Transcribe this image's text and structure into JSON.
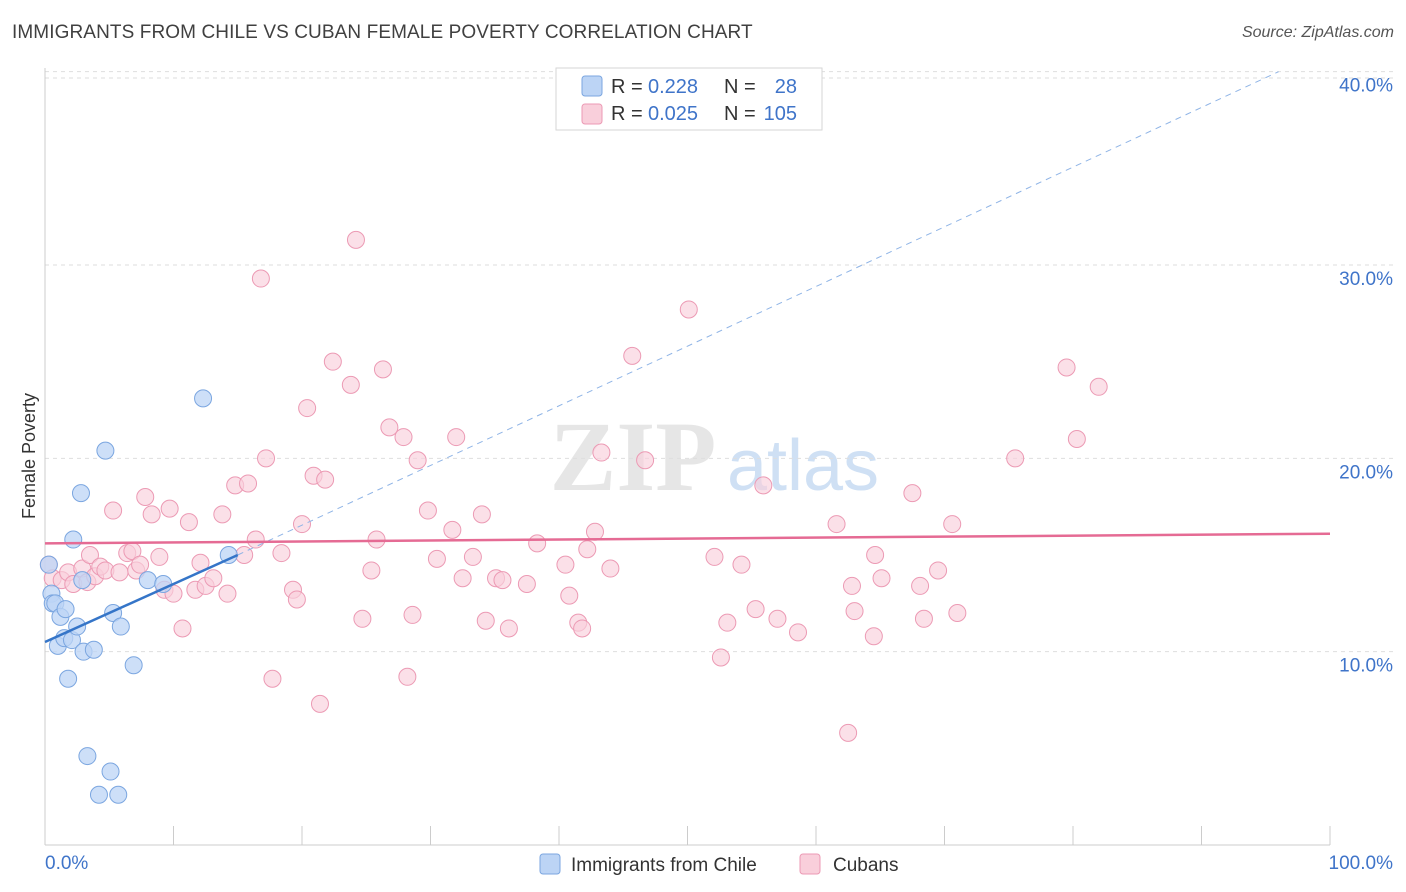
{
  "header": {
    "title": "IMMIGRANTS FROM CHILE VS CUBAN FEMALE POVERTY CORRELATION CHART",
    "source": "Source: ZipAtlas.com"
  },
  "watermark": {
    "zip": "ZIP",
    "atlas": "atlas"
  },
  "legend": {
    "r_label": "R =",
    "n_label": "N =",
    "rows": [
      {
        "r": "0.228",
        "n": "28",
        "color": "#a9c8f2"
      },
      {
        "r": "0.025",
        "n": "105",
        "color": "#f6bccd"
      }
    ]
  },
  "colors": {
    "chile_fill": "#bcd4f5",
    "chile_stroke": "#7ba6e0",
    "chile_line": "#3575c8",
    "cuba_fill": "#f9cfdb",
    "cuba_stroke": "#ec9ab4",
    "cuba_line": "#e56b94",
    "grid": "#dedede",
    "axis_label": "#3f74c9"
  },
  "chart_data": {
    "type": "scatter",
    "title": "IMMIGRANTS FROM CHILE VS CUBAN FEMALE POVERTY CORRELATION CHART",
    "xlabel": "",
    "ylabel": "Female Poverty",
    "xlim": [
      0,
      100
    ],
    "ylim": [
      0,
      40.5
    ],
    "x_tick_labels": [
      "0.0%",
      "100.0%"
    ],
    "y_ticks": [
      10,
      20,
      30,
      40
    ],
    "y_tick_labels": [
      "10.0%",
      "20.0%",
      "30.0%",
      "40.0%"
    ],
    "grid": true,
    "legend_position": "bottom",
    "series": [
      {
        "name": "Immigrants from Chile",
        "R": 0.228,
        "N": 28,
        "trend": {
          "x0": 0,
          "y0": 10.5,
          "x1": 15,
          "y1": 15.0,
          "dash_to_x": 96,
          "dash_to_y": 40.0
        },
        "points": [
          {
            "x": 0.3,
            "y": 14.5
          },
          {
            "x": 0.5,
            "y": 13.0
          },
          {
            "x": 0.6,
            "y": 12.5
          },
          {
            "x": 0.8,
            "y": 12.5
          },
          {
            "x": 1.0,
            "y": 10.3
          },
          {
            "x": 1.2,
            "y": 11.8
          },
          {
            "x": 1.5,
            "y": 10.7
          },
          {
            "x": 1.6,
            "y": 12.2
          },
          {
            "x": 1.8,
            "y": 8.6
          },
          {
            "x": 2.1,
            "y": 10.6
          },
          {
            "x": 2.2,
            "y": 15.8
          },
          {
            "x": 2.5,
            "y": 11.3
          },
          {
            "x": 2.8,
            "y": 18.2
          },
          {
            "x": 2.9,
            "y": 13.7
          },
          {
            "x": 3.0,
            "y": 10.0
          },
          {
            "x": 3.3,
            "y": 4.6
          },
          {
            "x": 3.8,
            "y": 10.1
          },
          {
            "x": 4.2,
            "y": 2.6
          },
          {
            "x": 4.7,
            "y": 20.4
          },
          {
            "x": 5.1,
            "y": 3.8
          },
          {
            "x": 5.3,
            "y": 12.0
          },
          {
            "x": 5.7,
            "y": 2.6
          },
          {
            "x": 5.9,
            "y": 11.3
          },
          {
            "x": 6.9,
            "y": 9.3
          },
          {
            "x": 8.0,
            "y": 13.7
          },
          {
            "x": 9.2,
            "y": 13.5
          },
          {
            "x": 12.3,
            "y": 23.1
          },
          {
            "x": 14.3,
            "y": 15.0
          }
        ]
      },
      {
        "name": "Cubans",
        "R": 0.025,
        "N": 105,
        "trend": {
          "x0": 0,
          "y0": 15.6,
          "x1": 100,
          "y1": 16.1
        },
        "points": [
          {
            "x": 0.3,
            "y": 14.5
          },
          {
            "x": 0.6,
            "y": 13.8
          },
          {
            "x": 1.3,
            "y": 13.7
          },
          {
            "x": 1.8,
            "y": 14.1
          },
          {
            "x": 2.2,
            "y": 13.5
          },
          {
            "x": 2.9,
            "y": 14.3
          },
          {
            "x": 3.3,
            "y": 13.6
          },
          {
            "x": 3.5,
            "y": 15.0
          },
          {
            "x": 3.9,
            "y": 13.9
          },
          {
            "x": 4.3,
            "y": 14.4
          },
          {
            "x": 4.7,
            "y": 14.2
          },
          {
            "x": 5.3,
            "y": 17.3
          },
          {
            "x": 5.8,
            "y": 14.1
          },
          {
            "x": 6.4,
            "y": 15.1
          },
          {
            "x": 6.8,
            "y": 15.2
          },
          {
            "x": 7.1,
            "y": 14.2
          },
          {
            "x": 7.4,
            "y": 14.5
          },
          {
            "x": 7.8,
            "y": 18.0
          },
          {
            "x": 8.3,
            "y": 17.1
          },
          {
            "x": 8.9,
            "y": 14.9
          },
          {
            "x": 9.3,
            "y": 13.2
          },
          {
            "x": 9.7,
            "y": 17.4
          },
          {
            "x": 10.0,
            "y": 13.0
          },
          {
            "x": 10.7,
            "y": 11.2
          },
          {
            "x": 11.2,
            "y": 16.7
          },
          {
            "x": 11.7,
            "y": 13.2
          },
          {
            "x": 12.1,
            "y": 14.6
          },
          {
            "x": 12.5,
            "y": 13.4
          },
          {
            "x": 13.1,
            "y": 13.8
          },
          {
            "x": 13.8,
            "y": 17.1
          },
          {
            "x": 14.2,
            "y": 13.0
          },
          {
            "x": 14.8,
            "y": 18.6
          },
          {
            "x": 15.5,
            "y": 15.0
          },
          {
            "x": 15.8,
            "y": 18.7
          },
          {
            "x": 16.4,
            "y": 15.8
          },
          {
            "x": 16.8,
            "y": 29.3
          },
          {
            "x": 17.2,
            "y": 20.0
          },
          {
            "x": 17.7,
            "y": 8.6
          },
          {
            "x": 18.4,
            "y": 15.1
          },
          {
            "x": 19.3,
            "y": 13.2
          },
          {
            "x": 19.6,
            "y": 12.7
          },
          {
            "x": 20.0,
            "y": 16.6
          },
          {
            "x": 20.4,
            "y": 22.6
          },
          {
            "x": 20.9,
            "y": 19.1
          },
          {
            "x": 21.4,
            "y": 7.3
          },
          {
            "x": 21.8,
            "y": 18.9
          },
          {
            "x": 22.4,
            "y": 25.0
          },
          {
            "x": 23.8,
            "y": 23.8
          },
          {
            "x": 24.2,
            "y": 31.3
          },
          {
            "x": 24.7,
            "y": 11.7
          },
          {
            "x": 25.4,
            "y": 14.2
          },
          {
            "x": 25.8,
            "y": 15.8
          },
          {
            "x": 26.3,
            "y": 24.6
          },
          {
            "x": 26.8,
            "y": 21.6
          },
          {
            "x": 27.9,
            "y": 21.1
          },
          {
            "x": 28.2,
            "y": 8.7
          },
          {
            "x": 28.6,
            "y": 11.9
          },
          {
            "x": 29.0,
            "y": 19.9
          },
          {
            "x": 29.8,
            "y": 17.3
          },
          {
            "x": 30.5,
            "y": 14.8
          },
          {
            "x": 31.7,
            "y": 16.3
          },
          {
            "x": 32.0,
            "y": 21.1
          },
          {
            "x": 32.5,
            "y": 13.8
          },
          {
            "x": 33.3,
            "y": 14.9
          },
          {
            "x": 34.3,
            "y": 11.6
          },
          {
            "x": 34.0,
            "y": 17.1
          },
          {
            "x": 35.1,
            "y": 13.8
          },
          {
            "x": 36.1,
            "y": 11.2
          },
          {
            "x": 35.6,
            "y": 13.7
          },
          {
            "x": 37.5,
            "y": 13.5
          },
          {
            "x": 38.3,
            "y": 15.6
          },
          {
            "x": 40.5,
            "y": 14.5
          },
          {
            "x": 40.8,
            "y": 12.9
          },
          {
            "x": 41.5,
            "y": 11.5
          },
          {
            "x": 42.2,
            "y": 15.3
          },
          {
            "x": 42.8,
            "y": 16.2
          },
          {
            "x": 41.8,
            "y": 11.2
          },
          {
            "x": 44.0,
            "y": 14.3
          },
          {
            "x": 43.3,
            "y": 20.3
          },
          {
            "x": 45.7,
            "y": 25.3
          },
          {
            "x": 46.7,
            "y": 19.9
          },
          {
            "x": 50.1,
            "y": 27.7
          },
          {
            "x": 52.1,
            "y": 14.9
          },
          {
            "x": 52.6,
            "y": 9.7
          },
          {
            "x": 53.1,
            "y": 11.5
          },
          {
            "x": 54.2,
            "y": 14.5
          },
          {
            "x": 55.3,
            "y": 12.2
          },
          {
            "x": 55.9,
            "y": 18.6
          },
          {
            "x": 57.0,
            "y": 11.7
          },
          {
            "x": 58.6,
            "y": 11.0
          },
          {
            "x": 61.6,
            "y": 16.6
          },
          {
            "x": 62.5,
            "y": 5.8
          },
          {
            "x": 62.8,
            "y": 13.4
          },
          {
            "x": 63.0,
            "y": 12.1
          },
          {
            "x": 64.6,
            "y": 15.0
          },
          {
            "x": 64.5,
            "y": 10.8
          },
          {
            "x": 65.1,
            "y": 13.8
          },
          {
            "x": 67.5,
            "y": 18.2
          },
          {
            "x": 68.1,
            "y": 13.4
          },
          {
            "x": 68.4,
            "y": 11.7
          },
          {
            "x": 69.5,
            "y": 14.2
          },
          {
            "x": 70.6,
            "y": 16.6
          },
          {
            "x": 71.0,
            "y": 12.0
          },
          {
            "x": 75.5,
            "y": 20.0
          },
          {
            "x": 79.5,
            "y": 24.7
          },
          {
            "x": 80.3,
            "y": 21.0
          },
          {
            "x": 82.0,
            "y": 23.7
          }
        ]
      }
    ]
  }
}
